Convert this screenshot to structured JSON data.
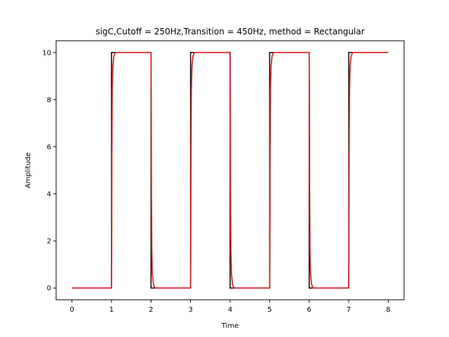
{
  "chart_data": {
    "type": "line",
    "title": "sigC,Cutoff = 250Hz,Transition = 450Hz, method = Rectangular",
    "xlabel": "Time",
    "ylabel": "Amplitude",
    "xlim": [
      -0.4,
      8.4
    ],
    "ylim": [
      -0.5,
      10.5
    ],
    "xticks": [
      0,
      1,
      2,
      3,
      4,
      5,
      6,
      7,
      8
    ],
    "yticks": [
      0,
      2,
      4,
      6,
      8,
      10
    ],
    "grid": false,
    "legend": "none",
    "series": [
      {
        "color": "#000000",
        "style": "ideal square wave",
        "x": [
          0,
          1,
          1,
          2,
          2,
          3,
          3,
          4,
          4,
          5,
          5,
          6,
          6,
          7,
          7,
          8
        ],
        "y": [
          0,
          0,
          10,
          10,
          0,
          0,
          10,
          10,
          0,
          0,
          10,
          10,
          0,
          0,
          10,
          10
        ]
      },
      {
        "color": "#d62728",
        "style": "filtered square wave",
        "x": [
          0,
          1,
          1.005,
          1.01,
          1.02,
          1.035,
          1.06,
          1.1,
          2,
          2.005,
          2.01,
          2.02,
          2.035,
          2.06,
          2.1,
          3,
          3.005,
          3.01,
          3.02,
          3.035,
          3.06,
          3.1,
          4,
          4.005,
          4.01,
          4.02,
          4.035,
          4.06,
          4.1,
          5,
          5.005,
          5.01,
          5.02,
          5.035,
          5.06,
          5.1,
          6,
          6.005,
          6.01,
          6.02,
          6.035,
          6.06,
          6.1,
          7,
          7.005,
          7.01,
          7.02,
          7.035,
          7.06,
          7.1,
          8
        ],
        "y": [
          0,
          0,
          1.5,
          5.5,
          8.4,
          9.4,
          9.85,
          10,
          10,
          8.5,
          4.5,
          1.6,
          0.6,
          0.15,
          0,
          0,
          1.5,
          5.5,
          8.4,
          9.4,
          9.85,
          10,
          10,
          8.5,
          4.5,
          1.6,
          0.6,
          0.15,
          0,
          0,
          1.5,
          5.5,
          8.4,
          9.4,
          9.85,
          10,
          10,
          8.5,
          4.5,
          1.6,
          0.6,
          0.15,
          0,
          0,
          1.5,
          5.5,
          8.4,
          9.4,
          9.85,
          10,
          10
        ]
      }
    ]
  }
}
